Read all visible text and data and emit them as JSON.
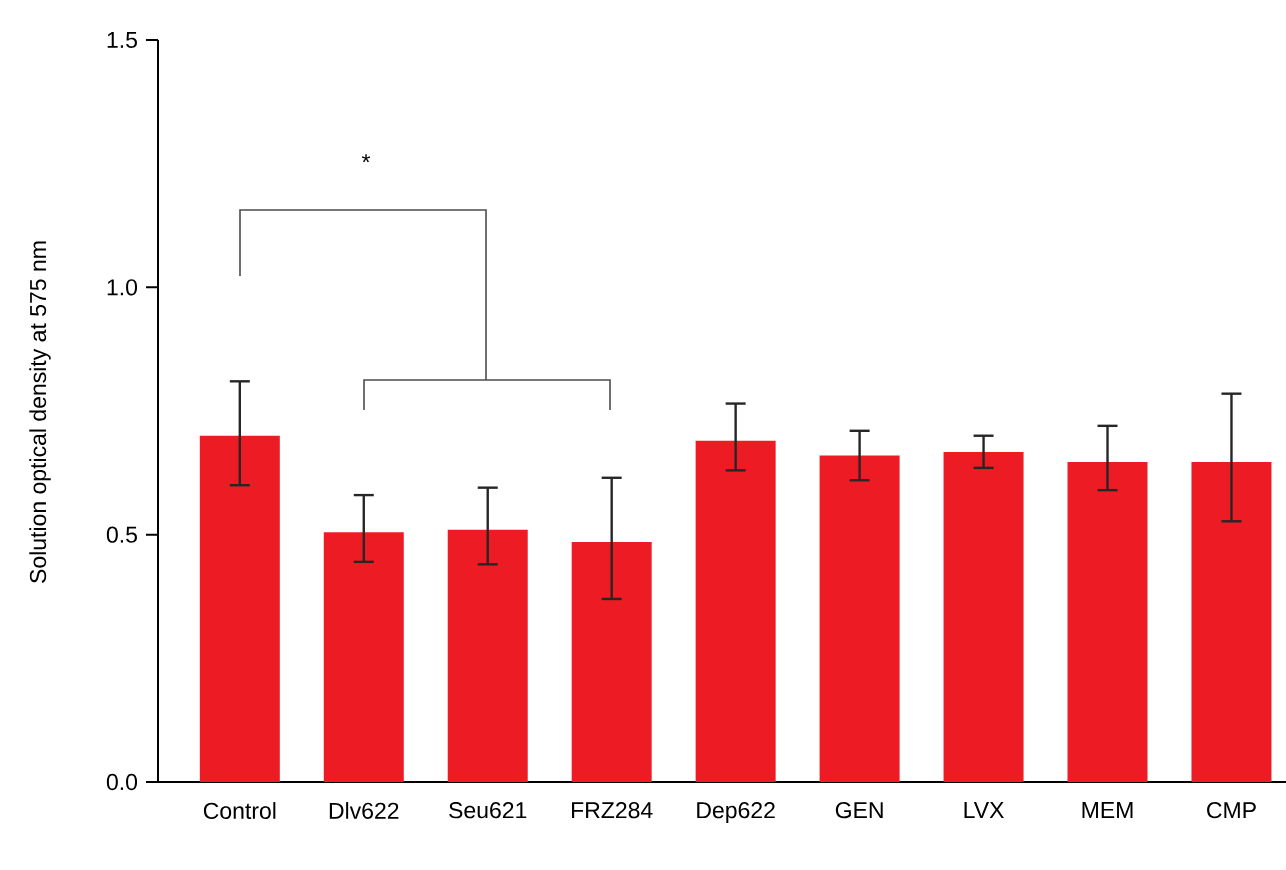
{
  "chart_data": {
    "type": "bar",
    "ylabel": "Solution optical density at 575 nm",
    "categories": [
      "Control",
      "Dlv622",
      "Seu621",
      "FRZ284",
      "Dep622",
      "GEN",
      "LVX",
      "MEM",
      "CMP"
    ],
    "values": [
      0.7,
      0.505,
      0.51,
      0.485,
      0.69,
      0.66,
      0.667,
      0.647,
      0.647
    ],
    "errors": [
      [
        0.6,
        0.81
      ],
      [
        0.445,
        0.58
      ],
      [
        0.44,
        0.595
      ],
      [
        0.37,
        0.615
      ],
      [
        0.63,
        0.765
      ],
      [
        0.61,
        0.71
      ],
      [
        0.635,
        0.7
      ],
      [
        0.59,
        0.72
      ],
      [
        0.527,
        0.785
      ]
    ],
    "color": "#ed1c24",
    "ylim": [
      0,
      1.5
    ],
    "yticks": [
      {
        "value": 0,
        "label": "0.0"
      },
      0.5,
      {
        "value": 1,
        "label": "1.0"
      },
      1.5
    ],
    "annotations": [
      "*"
    ],
    "grid": false
  }
}
